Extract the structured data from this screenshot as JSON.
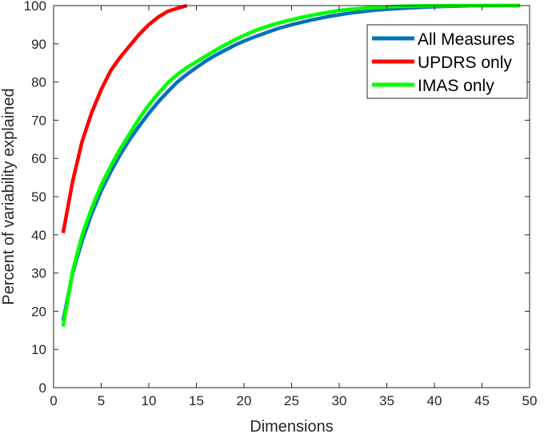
{
  "chart_data": {
    "type": "line",
    "xlabel": "Dimensions",
    "ylabel": "Percent of variability explained",
    "xlim": [
      0,
      50
    ],
    "ylim": [
      0,
      100
    ],
    "xticks": [
      0,
      5,
      10,
      15,
      20,
      25,
      30,
      35,
      40,
      45,
      50
    ],
    "yticks": [
      0,
      10,
      20,
      30,
      40,
      50,
      60,
      70,
      80,
      90,
      100
    ],
    "grid": false,
    "legend_position": "top-right",
    "series": [
      {
        "name": "All Measures",
        "color": "#0072BD",
        "x": [
          1,
          2,
          3,
          4,
          5,
          6,
          7,
          8,
          9,
          10,
          11,
          12,
          13,
          14,
          15,
          16,
          17,
          18,
          19,
          20,
          21,
          22,
          23,
          24,
          25,
          26,
          27,
          28,
          29,
          30,
          31,
          32,
          33,
          34,
          35,
          36,
          37,
          38,
          39,
          40,
          41,
          42,
          43,
          44,
          45,
          46,
          47,
          48,
          49
        ],
        "y": [
          17.5,
          30,
          38.5,
          45.5,
          51.5,
          56.5,
          61,
          65,
          68.5,
          71.8,
          74.8,
          77.5,
          80,
          82,
          83.8,
          85.5,
          87,
          88.3,
          89.6,
          90.7,
          91.7,
          92.6,
          93.5,
          94.3,
          95,
          95.6,
          96.2,
          96.7,
          97.2,
          97.6,
          98,
          98.3,
          98.6,
          98.85,
          99.05,
          99.2,
          99.35,
          99.48,
          99.6,
          99.7,
          99.78,
          99.85,
          99.9,
          99.94,
          99.97,
          99.98,
          99.99,
          100,
          100
        ]
      },
      {
        "name": "UPDRS only",
        "color": "#FF0000",
        "x": [
          1,
          2,
          3,
          4,
          5,
          6,
          7,
          8,
          9,
          10,
          11,
          12,
          13,
          14
        ],
        "y": [
          40.5,
          54,
          64.5,
          72,
          78,
          83,
          86.5,
          89.5,
          92.5,
          95,
          97,
          98.5,
          99.3,
          100
        ]
      },
      {
        "name": "IMAS only",
        "color": "#00FF00",
        "x": [
          1,
          2,
          3,
          4,
          5,
          6,
          7,
          8,
          9,
          10,
          11,
          12,
          13,
          14,
          15,
          16,
          17,
          18,
          19,
          20,
          21,
          22,
          23,
          24,
          25,
          26,
          27,
          28,
          29,
          30,
          31,
          32,
          33,
          34,
          35,
          36,
          37,
          38,
          39,
          40,
          41,
          42,
          43,
          44,
          45,
          46,
          47,
          48,
          49
        ],
        "y": [
          16,
          30.5,
          40,
          47,
          53,
          58,
          62.5,
          66.5,
          70.5,
          74,
          77,
          79.8,
          82,
          83.8,
          85.3,
          86.8,
          88.3,
          89.7,
          91,
          92.2,
          93.3,
          94.2,
          95,
          95.7,
          96.3,
          96.9,
          97.4,
          97.9,
          98.3,
          98.7,
          99,
          99.2,
          99.4,
          99.55,
          99.68,
          99.78,
          99.85,
          99.9,
          99.94,
          99.97,
          99.98,
          99.99,
          100,
          100,
          100,
          100,
          100,
          100,
          100
        ]
      }
    ]
  }
}
